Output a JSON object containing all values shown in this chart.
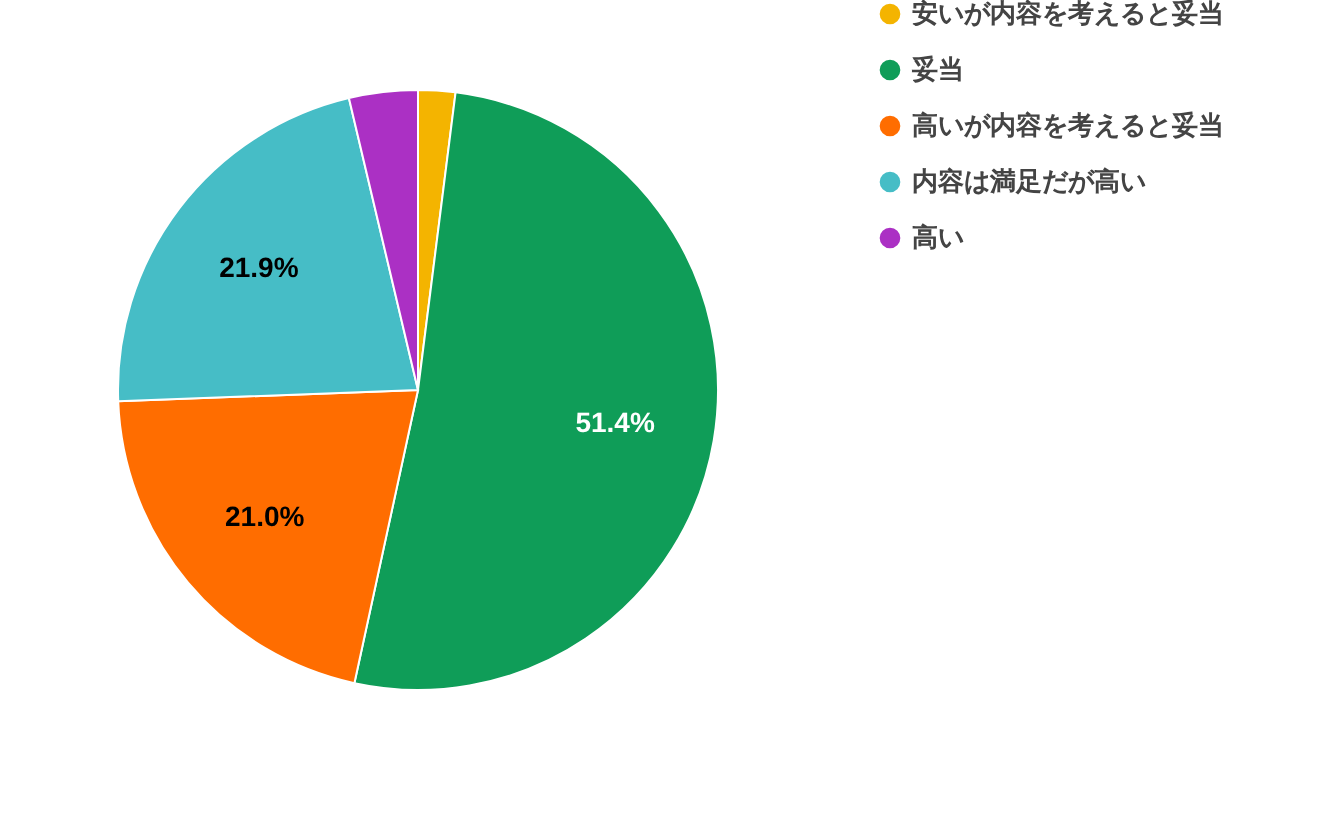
{
  "chart_data": {
    "type": "pie",
    "categories": [
      "安いが内容を考えると妥当",
      "妥当",
      "高いが内容を考えると妥当",
      "内容は満足だが高い",
      "高い"
    ],
    "values": [
      2.0,
      51.4,
      21.0,
      21.9,
      3.7
    ],
    "colors": [
      "#f4b400",
      "#0f9d58",
      "#ff6d00",
      "#46bdc6",
      "#ab30c4"
    ],
    "value_labels": [
      null,
      "51.4%",
      "21.0%",
      "21.9%",
      null
    ],
    "legend": "top right"
  }
}
